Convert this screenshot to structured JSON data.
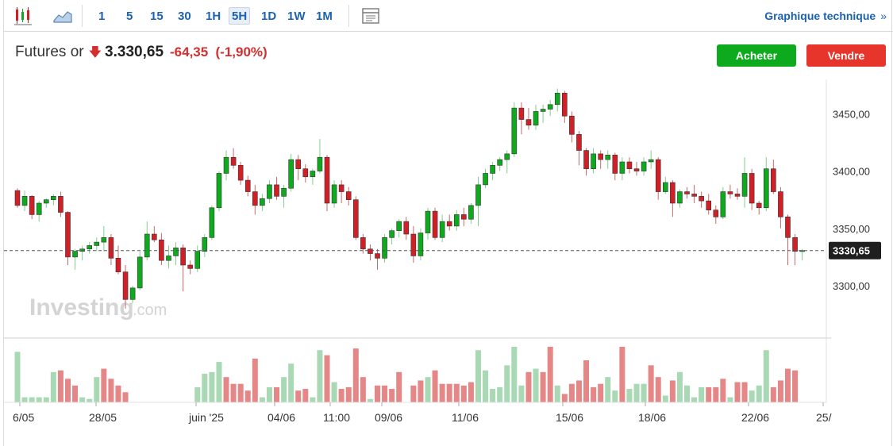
{
  "toolbar": {
    "timeframes": [
      "1",
      "5",
      "15",
      "30",
      "1H",
      "5H",
      "1D",
      "1W",
      "1M"
    ],
    "active_timeframe": "5H",
    "tech_link": "Graphique technique",
    "icons": [
      "candlestick-icon",
      "area-chart-icon",
      "layout-icon",
      "chevron-right-icon"
    ]
  },
  "header": {
    "name": "Futures or",
    "price": "3.330,65",
    "change": "-64,35",
    "change_pct": "(-1,90%)",
    "direction_color": "#d32f2f"
  },
  "buttons": {
    "buy": "Acheter",
    "sell": "Vendre",
    "buy_color": "#0eaa1e",
    "sell_color": "#e8352b"
  },
  "watermark": {
    "brand": "Investing",
    "suffix": ".com"
  },
  "chart_data": {
    "type": "candlestick",
    "ylim": [
      3255,
      3480
    ],
    "y_ticks": [
      3300,
      3350,
      3400,
      3450
    ],
    "y_tick_labels": [
      "3300,00",
      "3350,00",
      "3400,00",
      "3450,00"
    ],
    "last_price": 3330.65,
    "last_price_label": "3330,65",
    "x_tick_labels": [
      "6/05",
      "28/05",
      "juin '25",
      "04/06",
      "11:00",
      "09/06",
      "11/06",
      "15/06",
      "18/06",
      "22/06",
      "25/"
    ],
    "colors": {
      "up": "#0eaa1e",
      "down": "#d21f26",
      "vol_up": "#a8d8b4",
      "vol_down": "#e58787"
    },
    "candles": [
      [
        3383,
        3385,
        3368,
        3370
      ],
      [
        3370,
        3383,
        3365,
        3378
      ],
      [
        3378,
        3379,
        3358,
        3362
      ],
      [
        3362,
        3374,
        3356,
        3372
      ],
      [
        3372,
        3376,
        3368,
        3375
      ],
      [
        3375,
        3380,
        3370,
        3378
      ],
      [
        3378,
        3382,
        3360,
        3364
      ],
      [
        3364,
        3365,
        3318,
        3325
      ],
      [
        3325,
        3332,
        3314,
        3330
      ],
      [
        3330,
        3335,
        3322,
        3332
      ],
      [
        3332,
        3338,
        3328,
        3335
      ],
      [
        3335,
        3342,
        3330,
        3338
      ],
      [
        3338,
        3352,
        3330,
        3342
      ],
      [
        3342,
        3345,
        3318,
        3324
      ],
      [
        3324,
        3335,
        3310,
        3312
      ],
      [
        3312,
        3318,
        3280,
        3288
      ],
      [
        3288,
        3300,
        3285,
        3298
      ],
      [
        3298,
        3330,
        3296,
        3325
      ],
      [
        3325,
        3356,
        3322,
        3345
      ],
      [
        3345,
        3352,
        3338,
        3340
      ],
      [
        3340,
        3346,
        3318,
        3322
      ],
      [
        3322,
        3335,
        3315,
        3326
      ],
      [
        3326,
        3338,
        3318,
        3333
      ],
      [
        3333,
        3336,
        3295,
        3318
      ],
      [
        3318,
        3322,
        3310,
        3315
      ],
      [
        3315,
        3335,
        3312,
        3330
      ],
      [
        3330,
        3345,
        3325,
        3342
      ],
      [
        3342,
        3370,
        3340,
        3368
      ],
      [
        3368,
        3400,
        3365,
        3398
      ],
      [
        3398,
        3418,
        3392,
        3412
      ],
      [
        3412,
        3420,
        3402,
        3405
      ],
      [
        3405,
        3408,
        3388,
        3392
      ],
      [
        3392,
        3396,
        3378,
        3382
      ],
      [
        3382,
        3388,
        3362,
        3370
      ],
      [
        3370,
        3380,
        3365,
        3376
      ],
      [
        3376,
        3392,
        3372,
        3388
      ],
      [
        3388,
        3395,
        3375,
        3378
      ],
      [
        3378,
        3388,
        3368,
        3385
      ],
      [
        3385,
        3415,
        3382,
        3410
      ],
      [
        3410,
        3414,
        3392,
        3402
      ],
      [
        3402,
        3406,
        3390,
        3395
      ],
      [
        3395,
        3402,
        3388,
        3400
      ],
      [
        3400,
        3428,
        3398,
        3412
      ],
      [
        3412,
        3414,
        3365,
        3372
      ],
      [
        3372,
        3392,
        3368,
        3388
      ],
      [
        3388,
        3392,
        3372,
        3382
      ],
      [
        3382,
        3386,
        3370,
        3375
      ],
      [
        3375,
        3378,
        3340,
        3342
      ],
      [
        3342,
        3345,
        3328,
        3332
      ],
      [
        3332,
        3336,
        3322,
        3328
      ],
      [
        3328,
        3332,
        3314,
        3324
      ],
      [
        3324,
        3345,
        3320,
        3342
      ],
      [
        3342,
        3350,
        3336,
        3348
      ],
      [
        3348,
        3358,
        3342,
        3356
      ],
      [
        3356,
        3360,
        3340,
        3345
      ],
      [
        3345,
        3352,
        3320,
        3326
      ],
      [
        3326,
        3350,
        3322,
        3346
      ],
      [
        3346,
        3368,
        3340,
        3365
      ],
      [
        3365,
        3368,
        3340,
        3342
      ],
      [
        3342,
        3362,
        3338,
        3356
      ],
      [
        3356,
        3362,
        3348,
        3352
      ],
      [
        3352,
        3366,
        3348,
        3362
      ],
      [
        3362,
        3368,
        3352,
        3358
      ],
      [
        3358,
        3372,
        3354,
        3370
      ],
      [
        3370,
        3395,
        3352,
        3388
      ],
      [
        3388,
        3402,
        3385,
        3398
      ],
      [
        3398,
        3408,
        3392,
        3405
      ],
      [
        3405,
        3412,
        3400,
        3410
      ],
      [
        3410,
        3418,
        3398,
        3415
      ],
      [
        3415,
        3460,
        3412,
        3455
      ],
      [
        3455,
        3460,
        3432,
        3445
      ],
      [
        3445,
        3455,
        3436,
        3440
      ],
      [
        3440,
        3458,
        3436,
        3452
      ],
      [
        3452,
        3458,
        3442,
        3454
      ],
      [
        3454,
        3462,
        3448,
        3458
      ],
      [
        3458,
        3472,
        3452,
        3468
      ],
      [
        3468,
        3470,
        3442,
        3448
      ],
      [
        3448,
        3452,
        3425,
        3432
      ],
      [
        3432,
        3435,
        3405,
        3418
      ],
      [
        3418,
        3420,
        3396,
        3402
      ],
      [
        3402,
        3420,
        3398,
        3415
      ],
      [
        3415,
        3418,
        3402,
        3410
      ],
      [
        3410,
        3418,
        3402,
        3414
      ],
      [
        3414,
        3416,
        3392,
        3398
      ],
      [
        3398,
        3412,
        3392,
        3408
      ],
      [
        3408,
        3412,
        3398,
        3402
      ],
      [
        3402,
        3408,
        3396,
        3400
      ],
      [
        3400,
        3412,
        3396,
        3408
      ],
      [
        3408,
        3418,
        3402,
        3410
      ],
      [
        3410,
        3412,
        3375,
        3382
      ],
      [
        3382,
        3395,
        3380,
        3390
      ],
      [
        3390,
        3392,
        3360,
        3372
      ],
      [
        3372,
        3384,
        3368,
        3382
      ],
      [
        3382,
        3386,
        3376,
        3380
      ],
      [
        3380,
        3388,
        3372,
        3378
      ],
      [
        3378,
        3382,
        3368,
        3374
      ],
      [
        3374,
        3380,
        3362,
        3366
      ],
      [
        3366,
        3370,
        3354,
        3360
      ],
      [
        3360,
        3386,
        3358,
        3382
      ],
      [
        3382,
        3388,
        3376,
        3380
      ],
      [
        3380,
        3385,
        3375,
        3378
      ],
      [
        3378,
        3412,
        3368,
        3398
      ],
      [
        3398,
        3402,
        3366,
        3372
      ],
      [
        3372,
        3374,
        3362,
        3368
      ],
      [
        3368,
        3412,
        3365,
        3402
      ],
      [
        3402,
        3410,
        3380,
        3382
      ],
      [
        3382,
        3386,
        3350,
        3360
      ],
      [
        3360,
        3362,
        3318,
        3342
      ],
      [
        3342,
        3345,
        3318,
        3330
      ],
      [
        3330,
        3332,
        3322,
        3330.65
      ]
    ],
    "volume": [
      [
        60,
        "up"
      ],
      [
        6,
        "up"
      ],
      [
        6,
        "up"
      ],
      [
        6,
        "up"
      ],
      [
        6,
        "up"
      ],
      [
        36,
        "up"
      ],
      [
        38,
        "down"
      ],
      [
        28,
        "down"
      ],
      [
        20,
        "down"
      ],
      [
        6,
        "up"
      ],
      [
        4,
        "up"
      ],
      [
        30,
        "up"
      ],
      [
        40,
        "down"
      ],
      [
        28,
        "down"
      ],
      [
        20,
        "down"
      ],
      [
        12,
        "down"
      ],
      [
        0,
        "up"
      ],
      [
        0,
        "up"
      ],
      [
        0,
        "up"
      ],
      [
        0,
        "up"
      ],
      [
        0,
        "up"
      ],
      [
        0,
        "up"
      ],
      [
        0,
        "up"
      ],
      [
        0,
        "up"
      ],
      [
        0,
        "up"
      ],
      [
        18,
        "up"
      ],
      [
        34,
        "up"
      ],
      [
        36,
        "up"
      ],
      [
        48,
        "up"
      ],
      [
        30,
        "down"
      ],
      [
        22,
        "down"
      ],
      [
        22,
        "down"
      ],
      [
        14,
        "down"
      ],
      [
        52,
        "down"
      ],
      [
        6,
        "up"
      ],
      [
        18,
        "up"
      ],
      [
        18,
        "down"
      ],
      [
        30,
        "up"
      ],
      [
        46,
        "up"
      ],
      [
        14,
        "down"
      ],
      [
        16,
        "down"
      ],
      [
        6,
        "up"
      ],
      [
        62,
        "up"
      ],
      [
        56,
        "down"
      ],
      [
        24,
        "up"
      ],
      [
        16,
        "down"
      ],
      [
        18,
        "down"
      ],
      [
        64,
        "down"
      ],
      [
        30,
        "down"
      ],
      [
        4,
        "up"
      ],
      [
        20,
        "down"
      ],
      [
        20,
        "down"
      ],
      [
        16,
        "down"
      ],
      [
        36,
        "down"
      ],
      [
        0,
        "up"
      ],
      [
        20,
        "down"
      ],
      [
        26,
        "down"
      ],
      [
        30,
        "up"
      ],
      [
        38,
        "down"
      ],
      [
        22,
        "down"
      ],
      [
        22,
        "down"
      ],
      [
        22,
        "down"
      ],
      [
        20,
        "down"
      ],
      [
        24,
        "down"
      ],
      [
        62,
        "up"
      ],
      [
        38,
        "up"
      ],
      [
        16,
        "up"
      ],
      [
        18,
        "up"
      ],
      [
        44,
        "up"
      ],
      [
        66,
        "up"
      ],
      [
        20,
        "up"
      ],
      [
        36,
        "down"
      ],
      [
        40,
        "up"
      ],
      [
        36,
        "down"
      ],
      [
        66,
        "down"
      ],
      [
        20,
        "up"
      ],
      [
        10,
        "down"
      ],
      [
        22,
        "down"
      ],
      [
        26,
        "down"
      ],
      [
        50,
        "down"
      ],
      [
        18,
        "down"
      ],
      [
        22,
        "down"
      ],
      [
        30,
        "up"
      ],
      [
        14,
        "up"
      ],
      [
        66,
        "down"
      ],
      [
        16,
        "up"
      ],
      [
        22,
        "up"
      ],
      [
        22,
        "up"
      ],
      [
        44,
        "down"
      ],
      [
        30,
        "down"
      ],
      [
        8,
        "up"
      ],
      [
        26,
        "down"
      ],
      [
        36,
        "up"
      ],
      [
        20,
        "up"
      ],
      [
        6,
        "up"
      ],
      [
        18,
        "up"
      ],
      [
        18,
        "down"
      ],
      [
        18,
        "down"
      ],
      [
        28,
        "down"
      ],
      [
        6,
        "up"
      ],
      [
        24,
        "down"
      ],
      [
        24,
        "down"
      ],
      [
        14,
        "up"
      ],
      [
        20,
        "up"
      ],
      [
        62,
        "up"
      ],
      [
        18,
        "down"
      ],
      [
        26,
        "down"
      ],
      [
        40,
        "down"
      ],
      [
        38,
        "down"
      ],
      [
        0,
        "up"
      ],
      [
        0,
        "up"
      ],
      [
        0,
        "up"
      ]
    ]
  }
}
